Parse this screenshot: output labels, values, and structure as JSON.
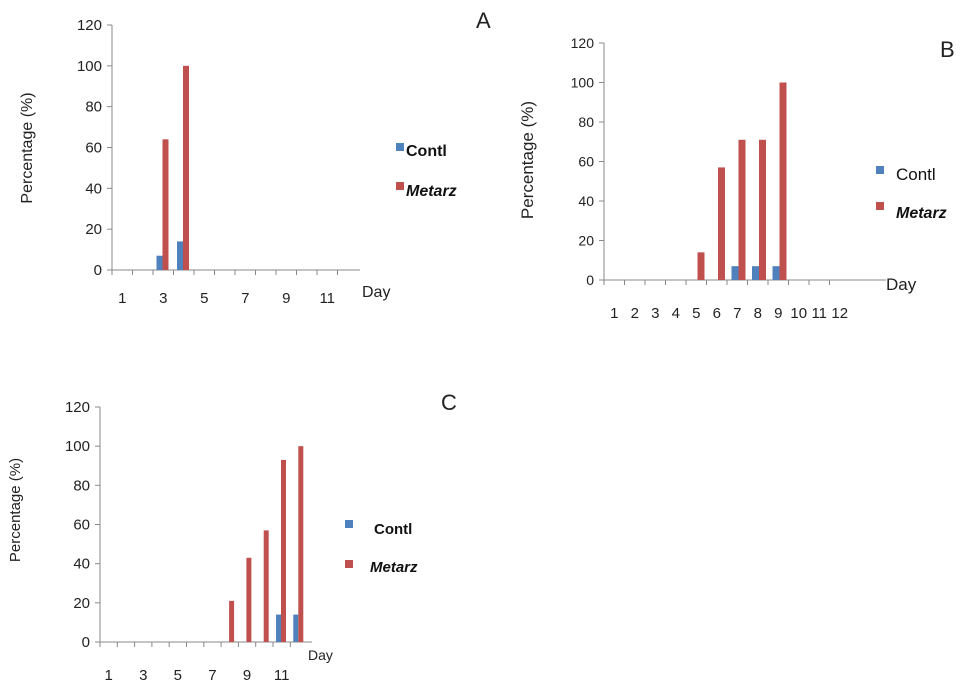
{
  "chart_data": [
    {
      "type": "bar",
      "panel_label": "A",
      "ylabel": "Percentage (%)",
      "xlabel": "Day",
      "ylim": [
        0,
        120
      ],
      "yticks": [
        "0",
        "20",
        "40",
        "60",
        "80",
        "100",
        "120"
      ],
      "categories": [
        1,
        2,
        3,
        4,
        5,
        6,
        7,
        8,
        9,
        10,
        11,
        12
      ],
      "tick_labels": [
        "1",
        "3",
        "5",
        "7",
        "9",
        "11"
      ],
      "series": [
        {
          "name": "Contl",
          "color": "#4f81bd",
          "values": [
            0,
            0,
            7,
            14,
            0,
            0,
            0,
            0,
            0,
            0,
            0,
            0
          ]
        },
        {
          "name": "Metarz",
          "color": "#c0504d",
          "values": [
            0,
            0,
            64,
            100,
            0,
            0,
            0,
            0,
            0,
            0,
            0,
            0
          ]
        }
      ],
      "legend_position": "right"
    },
    {
      "type": "bar",
      "panel_label": "B",
      "ylabel": "Percentage  (%)",
      "xlabel": "Day",
      "ylim": [
        0,
        120
      ],
      "yticks": [
        "0",
        "20",
        "40",
        "60",
        "80",
        "100",
        "120"
      ],
      "categories": [
        1,
        2,
        3,
        4,
        5,
        6,
        7,
        8,
        9,
        10,
        11,
        12
      ],
      "tick_labels": [
        "1",
        "2",
        "3",
        "4",
        "5",
        "6",
        "7",
        "8",
        "9",
        "10",
        "11",
        "12"
      ],
      "series": [
        {
          "name": "Contl",
          "color": "#4f81bd",
          "values": [
            0,
            0,
            0,
            0,
            0,
            0,
            7,
            7,
            7,
            0,
            0,
            0
          ]
        },
        {
          "name": "Metarz",
          "color": "#c0504d",
          "values": [
            0,
            0,
            0,
            0,
            14,
            57,
            71,
            71,
            100,
            0,
            0,
            0
          ]
        }
      ],
      "legend_position": "right"
    },
    {
      "type": "bar",
      "panel_label": "C",
      "ylabel": "Percentage (%)",
      "xlabel": "Day",
      "ylim": [
        0,
        120
      ],
      "yticks": [
        "0",
        "20",
        "40",
        "60",
        "80",
        "100",
        "120"
      ],
      "categories": [
        1,
        2,
        3,
        4,
        5,
        6,
        7,
        8,
        9,
        10,
        11,
        12
      ],
      "tick_labels": [
        "1",
        "3",
        "5",
        "7",
        "9",
        "11"
      ],
      "series": [
        {
          "name": "Contl",
          "color": "#4f81bd",
          "values": [
            0,
            0,
            0,
            0,
            0,
            0,
            0,
            0,
            0,
            0,
            14,
            14
          ]
        },
        {
          "name": "Metarz",
          "color": "#c0504d",
          "values": [
            0,
            0,
            0,
            0,
            0,
            0,
            0,
            21,
            43,
            57,
            93,
            100
          ]
        }
      ],
      "legend_position": "right"
    }
  ]
}
